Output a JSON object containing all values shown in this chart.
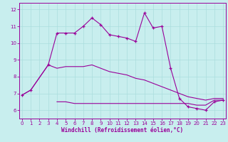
{
  "xlabel": "Windchill (Refroidissement éolien,°C)",
  "x_ticks": [
    0,
    1,
    2,
    3,
    4,
    5,
    6,
    7,
    8,
    9,
    10,
    11,
    12,
    13,
    14,
    15,
    16,
    17,
    18,
    19,
    20,
    21,
    22,
    23
  ],
  "y_ticks": [
    6,
    7,
    8,
    9,
    10,
    11,
    12
  ],
  "ylim": [
    5.5,
    12.4
  ],
  "xlim": [
    -0.3,
    23.3
  ],
  "bg_color": "#c8eeee",
  "line_color": "#990099",
  "grid_color": "#aadddd",
  "series1": [
    6.9,
    7.2,
    null,
    8.7,
    10.6,
    10.6,
    10.6,
    11.0,
    11.5,
    11.1,
    10.5,
    10.4,
    10.3,
    10.1,
    11.8,
    10.9,
    11.0,
    8.5,
    6.7,
    6.2,
    6.1,
    6.0,
    6.5,
    6.6
  ],
  "series2": [
    6.9,
    7.2,
    null,
    8.7,
    8.5,
    8.6,
    8.6,
    8.6,
    8.7,
    8.5,
    8.3,
    8.2,
    8.1,
    7.9,
    7.8,
    7.6,
    7.4,
    7.2,
    7.0,
    6.8,
    6.7,
    6.6,
    6.7,
    6.7
  ],
  "series3": [
    null,
    null,
    null,
    null,
    6.5,
    6.5,
    6.4,
    6.4,
    6.4,
    6.4,
    6.4,
    6.4,
    6.4,
    6.4,
    6.4,
    6.4,
    6.4,
    6.4,
    6.4,
    6.4,
    6.3,
    6.3,
    6.6,
    6.6
  ]
}
